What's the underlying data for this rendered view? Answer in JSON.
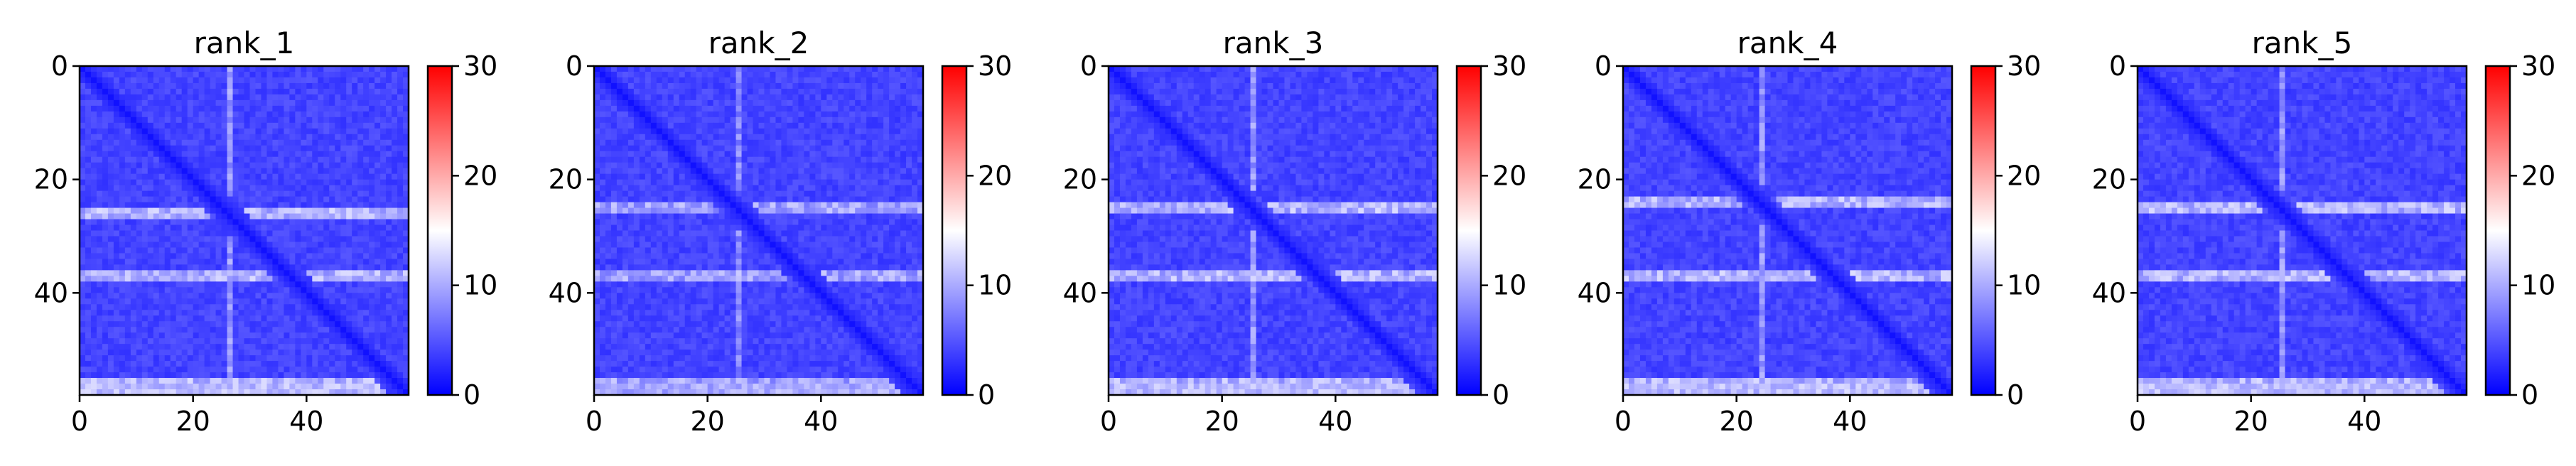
{
  "figure": {
    "panel_titles": [
      "rank_1",
      "rank_2",
      "rank_3",
      "rank_4",
      "rank_5"
    ]
  },
  "chart_data": [
    {
      "type": "heatmap",
      "title": "rank_1",
      "matrix_size": 58,
      "x_ticks": [
        0,
        20,
        40
      ],
      "y_ticks": [
        0,
        20,
        40
      ],
      "colorbar": {
        "min": 0,
        "max": 30,
        "ticks": [
          0,
          10,
          20,
          30
        ],
        "colors": [
          "#0000ff",
          "#ffffff",
          "#ff0000"
        ]
      },
      "approx_pattern": {
        "diagonal_value": 1,
        "background_value": 4,
        "bright_rows": [
          26,
          37,
          56
        ],
        "bright_row_value": 11,
        "bright_cols": [
          26
        ]
      }
    },
    {
      "type": "heatmap",
      "title": "rank_2",
      "matrix_size": 58,
      "x_ticks": [
        0,
        20,
        40
      ],
      "y_ticks": [
        0,
        20,
        40
      ],
      "colorbar": {
        "min": 0,
        "max": 30,
        "ticks": [
          0,
          10,
          20,
          30
        ],
        "colors": [
          "#0000ff",
          "#ffffff",
          "#ff0000"
        ]
      },
      "approx_pattern": {
        "diagonal_value": 1,
        "background_value": 4,
        "bright_rows": [
          25,
          37,
          56
        ],
        "bright_row_value": 10,
        "bright_cols": [
          25
        ]
      }
    },
    {
      "type": "heatmap",
      "title": "rank_3",
      "matrix_size": 58,
      "x_ticks": [
        0,
        20,
        40
      ],
      "y_ticks": [
        0,
        20,
        40
      ],
      "colorbar": {
        "min": 0,
        "max": 30,
        "ticks": [
          0,
          10,
          20,
          30
        ],
        "colors": [
          "#0000ff",
          "#ffffff",
          "#ff0000"
        ]
      },
      "approx_pattern": {
        "diagonal_value": 1,
        "background_value": 4,
        "bright_rows": [
          25,
          37,
          56
        ],
        "bright_row_value": 11,
        "bright_cols": [
          25
        ]
      }
    },
    {
      "type": "heatmap",
      "title": "rank_4",
      "matrix_size": 58,
      "x_ticks": [
        0,
        20,
        40
      ],
      "y_ticks": [
        0,
        20,
        40
      ],
      "colorbar": {
        "min": 0,
        "max": 30,
        "ticks": [
          0,
          10,
          20,
          30
        ],
        "colors": [
          "#0000ff",
          "#ffffff",
          "#ff0000"
        ]
      },
      "approx_pattern": {
        "diagonal_value": 1,
        "background_value": 4,
        "bright_rows": [
          24,
          37,
          56
        ],
        "bright_row_value": 11,
        "bright_cols": [
          24
        ]
      }
    },
    {
      "type": "heatmap",
      "title": "rank_5",
      "matrix_size": 58,
      "x_ticks": [
        0,
        20,
        40
      ],
      "y_ticks": [
        0,
        20,
        40
      ],
      "colorbar": {
        "min": 0,
        "max": 30,
        "ticks": [
          0,
          10,
          20,
          30
        ],
        "colors": [
          "#0000ff",
          "#ffffff",
          "#ff0000"
        ]
      },
      "approx_pattern": {
        "diagonal_value": 1,
        "background_value": 4,
        "bright_rows": [
          25,
          37,
          56
        ],
        "bright_row_value": 11,
        "bright_cols": [
          25
        ]
      }
    }
  ]
}
